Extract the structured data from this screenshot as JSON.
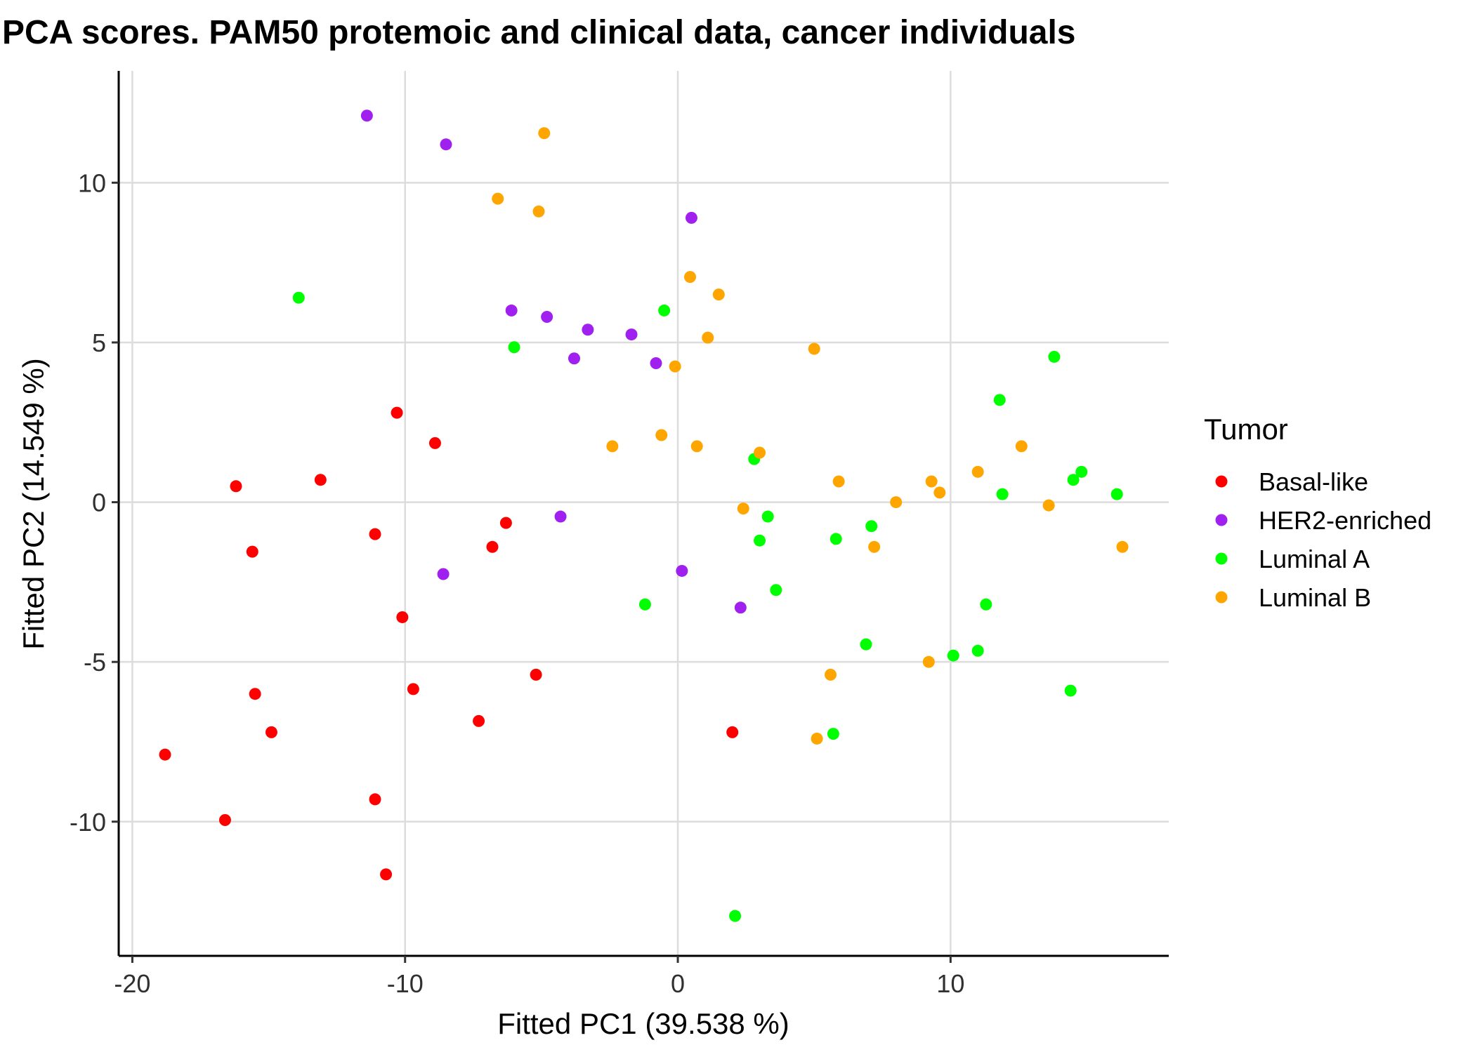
{
  "chart_data": {
    "type": "scatter",
    "title": "PCA scores. PAM50 protemoic and clinical data, cancer individuals",
    "xlabel": "Fitted PC1 (39.538 %)",
    "ylabel": "Fitted PC2 (14.549 %)",
    "xlim": [
      -20.5,
      18
    ],
    "ylim": [
      -14.2,
      13.5
    ],
    "xticks": [
      -20,
      -10,
      0,
      10
    ],
    "xtick_labels": [
      "-20",
      "-10",
      "0",
      "10"
    ],
    "yticks": [
      -10,
      -5,
      0,
      5,
      10
    ],
    "ytick_labels": [
      "-10",
      "-5",
      "0",
      "5",
      "10"
    ],
    "grid": true,
    "legend": {
      "title": "Tumor",
      "position": "right"
    },
    "series": [
      {
        "name": "Basal-like",
        "color": "#ff0000",
        "points": [
          [
            -16.2,
            0.5
          ],
          [
            -13.1,
            0.7
          ],
          [
            -10.3,
            2.8
          ],
          [
            -8.9,
            1.85
          ],
          [
            -15.6,
            -1.55
          ],
          [
            -11.1,
            -1.0
          ],
          [
            -6.3,
            -0.65
          ],
          [
            -6.8,
            -1.4
          ],
          [
            -10.1,
            -3.6
          ],
          [
            -15.5,
            -6.0
          ],
          [
            -14.9,
            -7.2
          ],
          [
            -9.7,
            -5.85
          ],
          [
            -7.3,
            -6.85
          ],
          [
            -5.2,
            -5.4
          ],
          [
            -18.8,
            -7.9
          ],
          [
            -16.6,
            -9.95
          ],
          [
            -11.1,
            -9.3
          ],
          [
            -10.7,
            -11.65
          ],
          [
            2.0,
            -7.2
          ]
        ]
      },
      {
        "name": "HER2-enriched",
        "color": "#a020f0",
        "points": [
          [
            -11.4,
            12.1
          ],
          [
            -8.5,
            11.2
          ],
          [
            0.5,
            8.9
          ],
          [
            -6.1,
            6.0
          ],
          [
            -4.8,
            5.8
          ],
          [
            -3.3,
            5.4
          ],
          [
            -1.7,
            5.25
          ],
          [
            -3.8,
            4.5
          ],
          [
            -0.8,
            4.35
          ],
          [
            -4.3,
            -0.45
          ],
          [
            -8.6,
            -2.25
          ],
          [
            0.15,
            -2.15
          ],
          [
            2.3,
            -3.3
          ]
        ]
      },
      {
        "name": "Luminal A",
        "color": "#00ff00",
        "points": [
          [
            -13.9,
            6.4
          ],
          [
            -6.0,
            4.85
          ],
          [
            -0.5,
            6.0
          ],
          [
            13.8,
            4.55
          ],
          [
            11.8,
            3.2
          ],
          [
            2.8,
            1.35
          ],
          [
            14.8,
            0.95
          ],
          [
            14.5,
            0.7
          ],
          [
            11.9,
            0.25
          ],
          [
            16.1,
            0.25
          ],
          [
            3.3,
            -0.45
          ],
          [
            7.1,
            -0.75
          ],
          [
            3.0,
            -1.2
          ],
          [
            5.8,
            -1.15
          ],
          [
            3.6,
            -2.75
          ],
          [
            -1.2,
            -3.2
          ],
          [
            11.3,
            -3.2
          ],
          [
            6.9,
            -4.45
          ],
          [
            10.1,
            -4.8
          ],
          [
            11.0,
            -4.65
          ],
          [
            14.4,
            -5.9
          ],
          [
            5.7,
            -7.25
          ],
          [
            2.1,
            -12.95
          ]
        ]
      },
      {
        "name": "Luminal B",
        "color": "#ffa500",
        "points": [
          [
            -4.9,
            11.55
          ],
          [
            -6.6,
            9.5
          ],
          [
            -5.1,
            9.1
          ],
          [
            0.45,
            7.05
          ],
          [
            1.5,
            6.5
          ],
          [
            1.1,
            5.15
          ],
          [
            -0.1,
            4.25
          ],
          [
            5.0,
            4.8
          ],
          [
            -2.4,
            1.75
          ],
          [
            -0.6,
            2.1
          ],
          [
            0.7,
            1.75
          ],
          [
            3.0,
            1.55
          ],
          [
            12.6,
            1.75
          ],
          [
            11.0,
            0.95
          ],
          [
            5.9,
            0.65
          ],
          [
            9.3,
            0.65
          ],
          [
            9.6,
            0.3
          ],
          [
            8.0,
            0.0
          ],
          [
            13.6,
            -0.1
          ],
          [
            2.4,
            -0.2
          ],
          [
            7.2,
            -1.4
          ],
          [
            16.3,
            -1.4
          ],
          [
            9.2,
            -5.0
          ],
          [
            5.6,
            -5.4
          ],
          [
            5.1,
            -7.4
          ]
        ]
      }
    ]
  }
}
